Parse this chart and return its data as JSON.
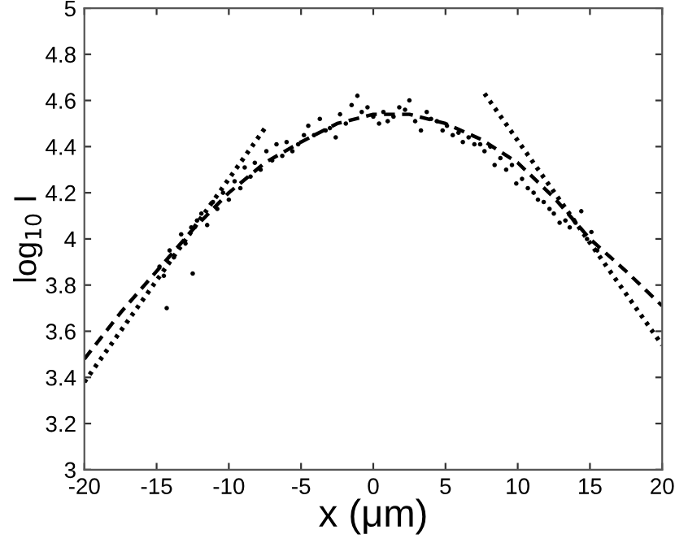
{
  "chart_data": {
    "type": "scatter",
    "xlabel": "x (μm)",
    "ylabel": "log$_{10}$ I",
    "xlim": [
      -20,
      20
    ],
    "ylim": [
      3,
      5
    ],
    "xticks": [
      -20,
      -15,
      -10,
      -5,
      0,
      5,
      10,
      15,
      20
    ],
    "yticks": [
      3,
      3.2,
      3.4,
      3.6,
      3.8,
      4,
      4.2,
      4.4,
      4.6,
      4.8,
      5
    ],
    "grid": false,
    "legend": false,
    "series": [
      {
        "marker": "circle",
        "color": "#000000",
        "x": [
          -14.8,
          -14.5,
          -14.3,
          -14.1,
          -13.8,
          -13.3,
          -13.0,
          -12.6,
          -12.5,
          -12.2,
          -11.9,
          -11.5,
          -11.1,
          -10.8,
          -10.4,
          -10.0,
          -9.6,
          -9.2,
          -8.9,
          -8.5,
          -8.2,
          -7.8,
          -7.4,
          -7.0,
          -6.7,
          -6.3,
          -6.0,
          -5.6,
          -5.2,
          -4.8,
          -4.5,
          -4.1,
          -3.7,
          -3.3,
          -3.0,
          -2.6,
          -2.3,
          -1.9,
          -1.5,
          -1.1,
          -0.8,
          -0.4,
          0.0,
          0.4,
          0.7,
          1.0,
          1.4,
          1.8,
          2.2,
          2.5,
          2.9,
          3.3,
          3.7,
          4.0,
          4.4,
          4.8,
          5.1,
          5.5,
          5.9,
          6.2,
          6.6,
          7.0,
          7.4,
          7.7,
          8.1,
          8.4,
          8.8,
          9.2,
          9.6,
          9.9,
          10.3,
          10.7,
          11.1,
          11.4,
          11.8,
          12.2,
          12.5,
          12.9,
          13.3,
          13.6,
          14.0,
          14.4,
          14.8,
          15.1,
          15.5
        ],
        "values": [
          3.88,
          3.84,
          3.7,
          3.95,
          3.92,
          4.02,
          3.98,
          4.05,
          3.85,
          4.08,
          4.11,
          4.06,
          4.16,
          4.13,
          4.2,
          4.17,
          4.25,
          4.22,
          4.31,
          4.27,
          4.33,
          4.3,
          4.38,
          4.34,
          4.41,
          4.36,
          4.42,
          4.38,
          4.41,
          4.45,
          4.49,
          4.45,
          4.52,
          4.47,
          4.48,
          4.44,
          4.54,
          4.5,
          4.58,
          4.62,
          4.55,
          4.57,
          4.53,
          4.5,
          4.55,
          4.51,
          4.53,
          4.57,
          4.56,
          4.6,
          4.51,
          4.47,
          4.55,
          4.52,
          4.51,
          4.47,
          4.49,
          4.45,
          4.46,
          4.42,
          4.44,
          4.41,
          4.41,
          4.38,
          4.4,
          4.32,
          4.35,
          4.3,
          4.32,
          4.24,
          4.26,
          4.22,
          4.2,
          4.17,
          4.16,
          4.13,
          4.11,
          4.07,
          4.08,
          4.05,
          4.07,
          4.12,
          4.0,
          4.03,
          3.95
        ]
      },
      {
        "type": "line",
        "line_style": "dashed",
        "color": "#000000",
        "x": [
          -20,
          -17.5,
          -15,
          -12.5,
          -10,
          -7.5,
          -5,
          -2.5,
          0,
          2.5,
          5,
          7.5,
          10,
          12.5,
          15,
          17.5,
          20
        ],
        "values": [
          3.48,
          3.68,
          3.86,
          4.04,
          4.2,
          4.33,
          4.42,
          4.5,
          4.54,
          4.54,
          4.5,
          4.43,
          4.33,
          4.18,
          4.0,
          3.86,
          3.71
        ]
      },
      {
        "type": "line",
        "line_style": "dotted",
        "color": "#000000",
        "x": [
          -20,
          -7.5
        ],
        "values": [
          3.38,
          4.48
        ]
      },
      {
        "type": "line",
        "line_style": "dotted",
        "color": "#000000",
        "x": [
          7.7,
          20
        ],
        "values": [
          4.63,
          3.54
        ]
      }
    ]
  }
}
